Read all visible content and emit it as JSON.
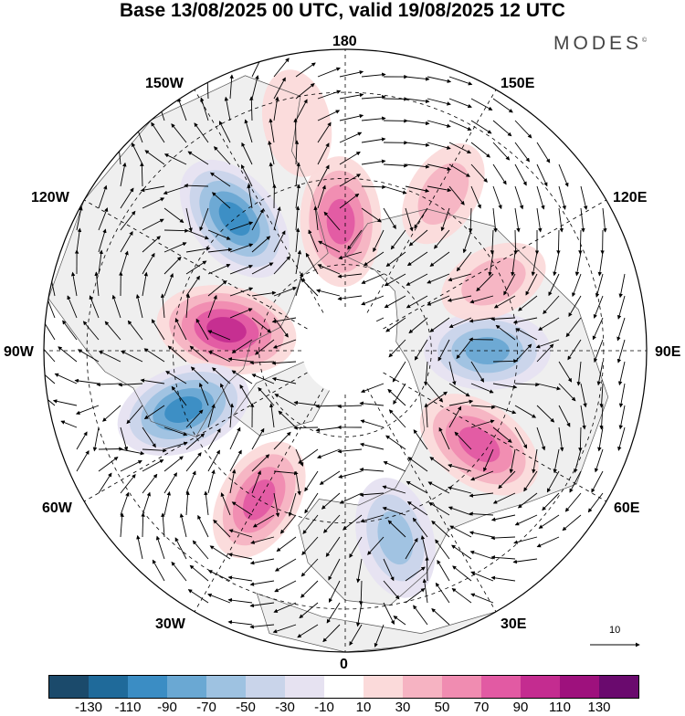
{
  "title": "Base 13/08/2025 00 UTC, valid 19/08/2025 12 UTC",
  "brand": "MODES",
  "brand_mark": "©",
  "longitude_labels": {
    "top": "180",
    "bottom": "0",
    "left": "90W",
    "right": "90E",
    "upper_left_1": "150W",
    "upper_left_2": "120W",
    "upper_right_1": "150E",
    "upper_right_2": "120E",
    "lower_left_1": "60W",
    "lower_left_2": "30W",
    "lower_right_1": "60E",
    "lower_right_2": "30E"
  },
  "reference_vector": {
    "label": "10"
  },
  "colorbar": {
    "colors": [
      "#1b4a6b",
      "#1f6a9a",
      "#3b8dc4",
      "#6aa8d3",
      "#9ec2e1",
      "#c9d4ea",
      "#e6e2f1",
      "#ffffff",
      "#fbdada",
      "#f6b3c2",
      "#f08cb1",
      "#e25aa3",
      "#c42c90",
      "#9e117d",
      "#6a0a6e"
    ],
    "tick_labels": [
      "-130",
      "-110",
      "-90",
      "-70",
      "-50",
      "-30",
      "-10",
      "10",
      "30",
      "50",
      "70",
      "90",
      "110",
      "130"
    ]
  },
  "map_data": {
    "type": "polar-stereographic anomaly map",
    "anomalies": [
      {
        "name": "canada-high",
        "lon_deg": -100,
        "colat_deg": 28,
        "value": 105
      },
      {
        "name": "alaska-high",
        "lon_deg": -178,
        "colat_deg": 30,
        "value": 80
      },
      {
        "name": "aleutian-low",
        "lon_deg": -140,
        "colat_deg": 40,
        "value": -95
      },
      {
        "name": "labrador-low",
        "lon_deg": -70,
        "colat_deg": 40,
        "value": -95
      },
      {
        "name": "northatlantic-high",
        "lon_deg": -30,
        "colat_deg": 40,
        "value": 70
      },
      {
        "name": "europe-low",
        "lon_deg": 15,
        "colat_deg": 45,
        "value": -60
      },
      {
        "name": "westsiberia-high",
        "lon_deg": 55,
        "colat_deg": 38,
        "value": 85
      },
      {
        "name": "centralsiberia-low",
        "lon_deg": 90,
        "colat_deg": 33,
        "value": -70
      },
      {
        "name": "eastsiberia-high",
        "lon_deg": 115,
        "colat_deg": 38,
        "value": 30
      },
      {
        "name": "pacific-high",
        "lon_deg": 148,
        "colat_deg": 43,
        "value": 30
      },
      {
        "name": "westpacific-high",
        "lon_deg": -168,
        "colat_deg": 54,
        "value": 25
      }
    ]
  }
}
